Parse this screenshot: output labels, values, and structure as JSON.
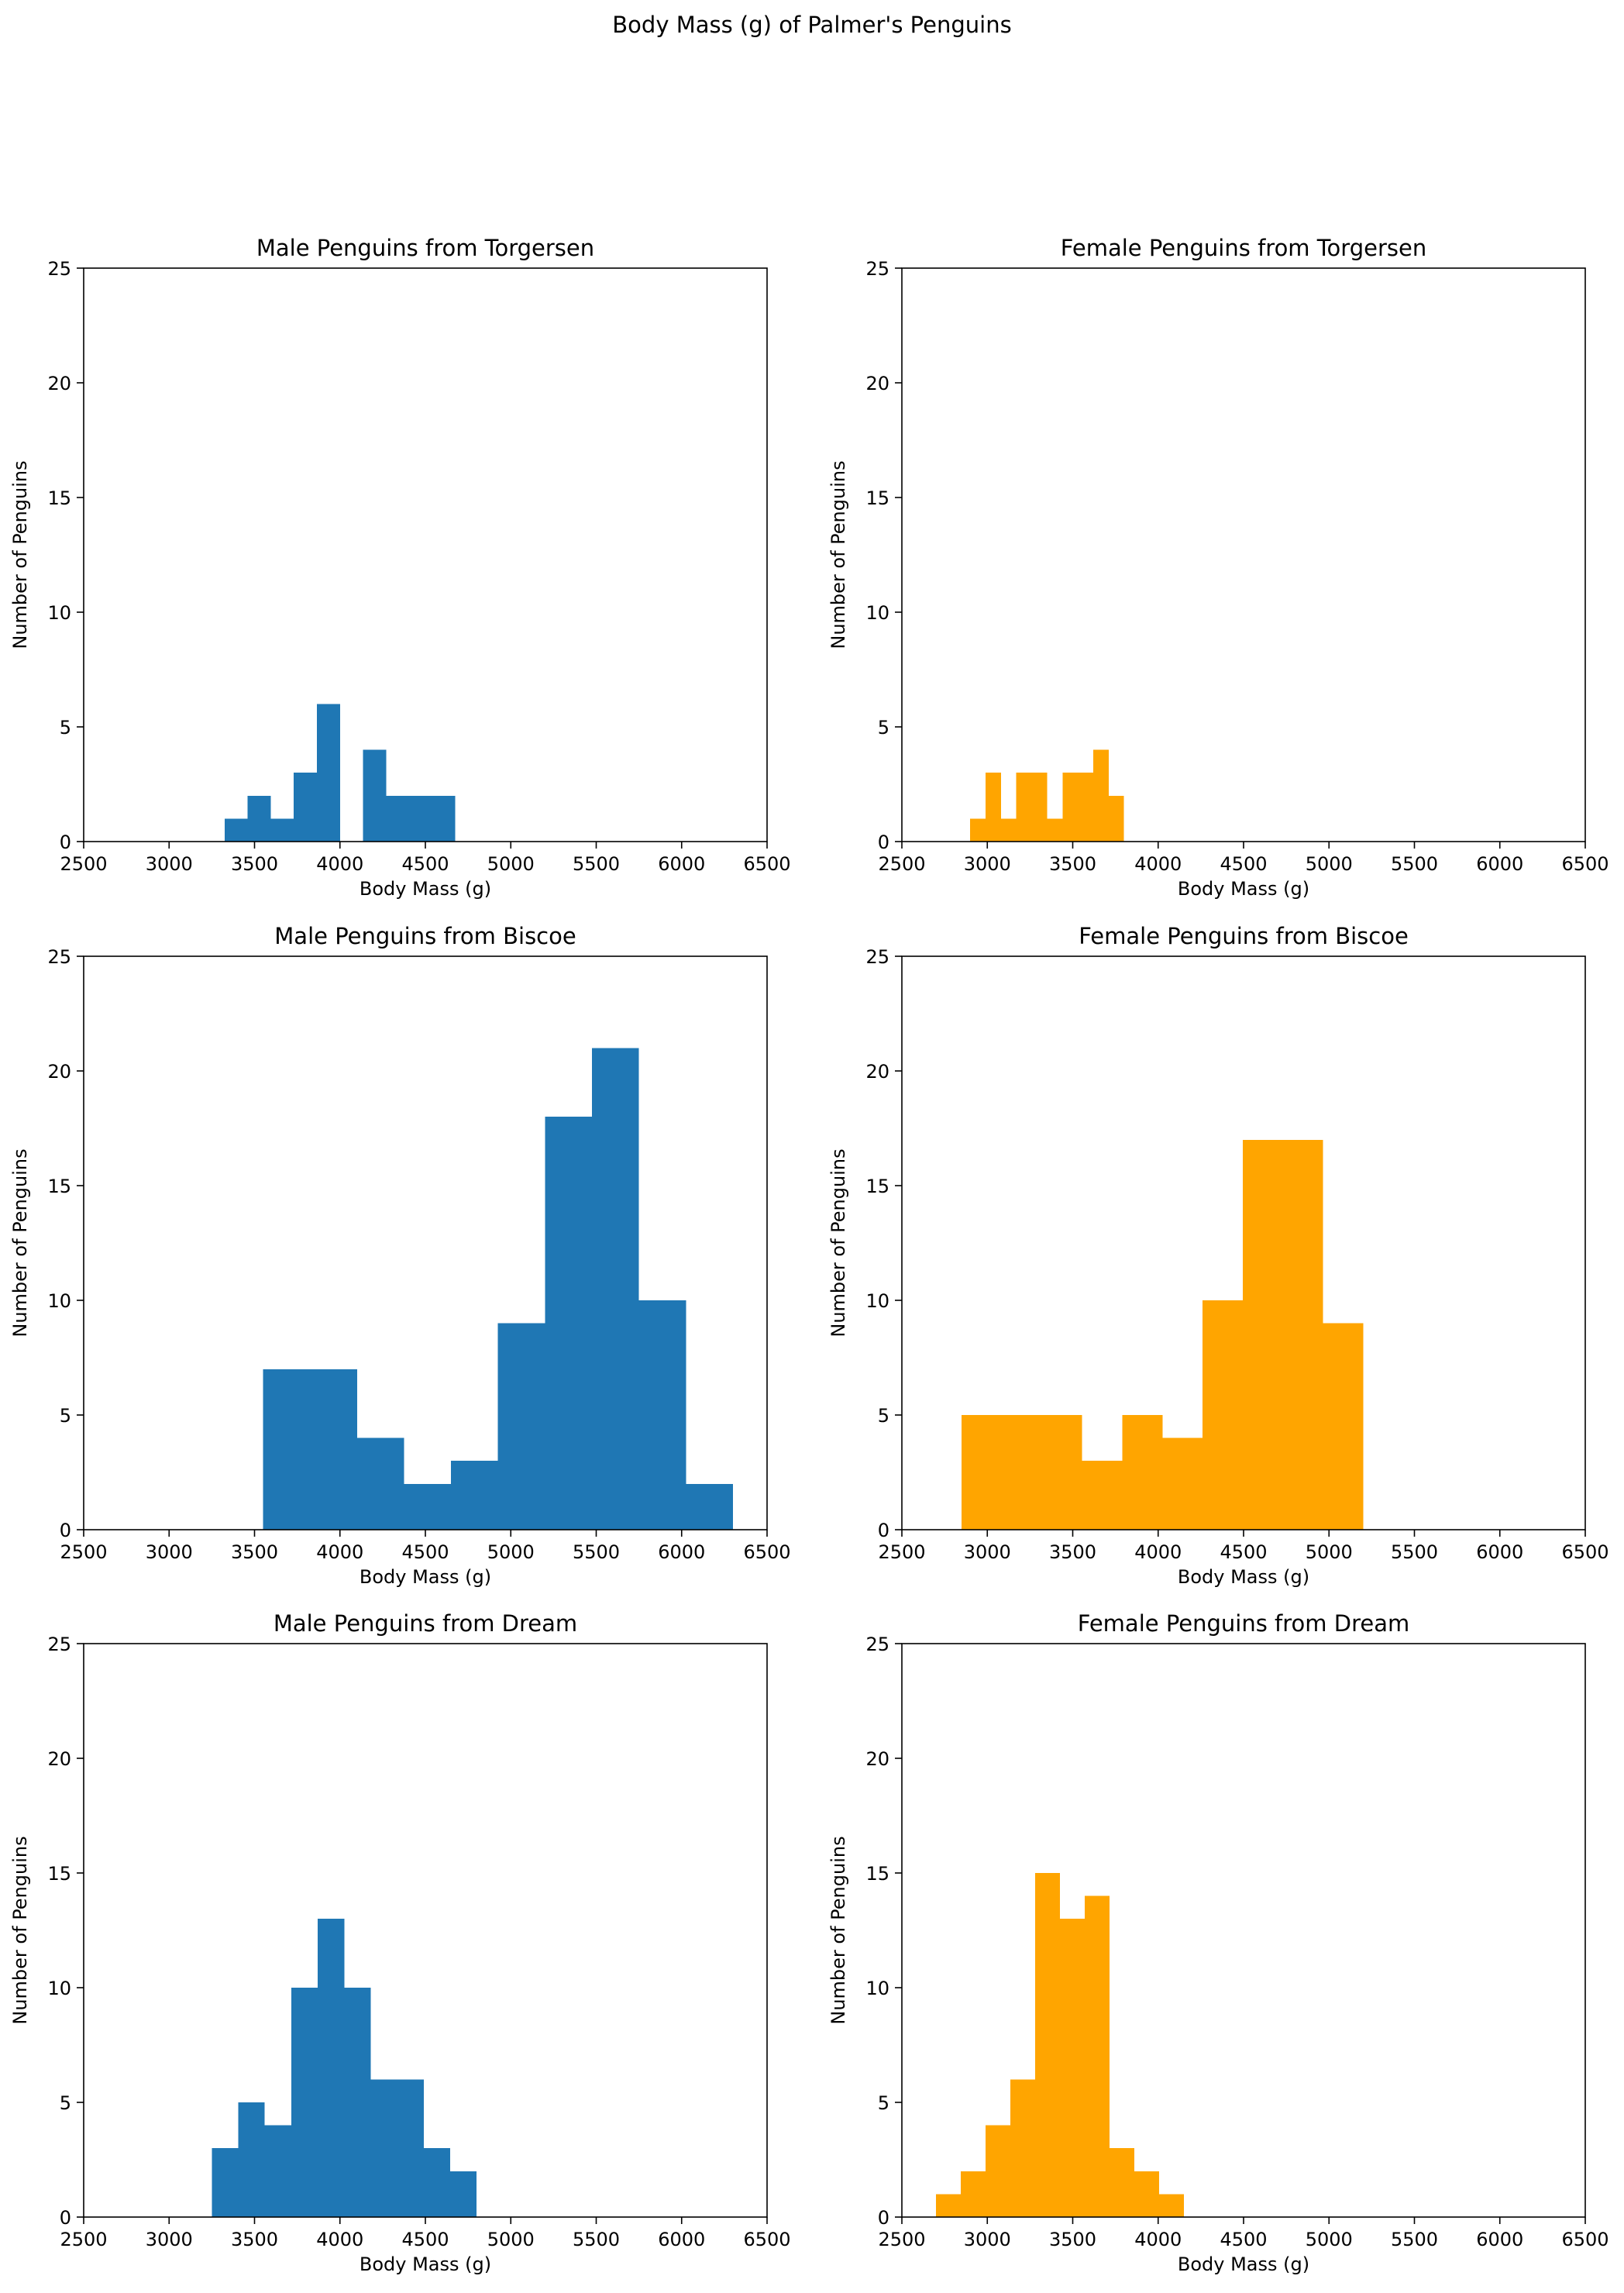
{
  "figure": {
    "title": "Body Mass (g) of Palmer's Penguins"
  },
  "colors": {
    "male": "#1f77b4",
    "female": "#ffa500"
  },
  "chart_data": [
    {
      "type": "bar",
      "title": "Male Penguins from Torgersen",
      "xlabel": "Body Mass (g)",
      "ylabel": "Number of Penguins",
      "xlim": [
        2500,
        6500
      ],
      "ylim": [
        0,
        25
      ],
      "xticks": [
        2500,
        3000,
        3500,
        4000,
        4500,
        5000,
        5500,
        6000,
        6500
      ],
      "yticks": [
        0,
        5,
        10,
        15,
        20,
        25
      ],
      "color": "male",
      "bins": [
        3325,
        3460,
        3595,
        3730,
        3865,
        4000,
        4135,
        4270,
        4405,
        4540,
        4675
      ],
      "counts": [
        1,
        2,
        1,
        3,
        6,
        0,
        4,
        2,
        2,
        2
      ]
    },
    {
      "type": "bar",
      "title": "Female Penguins from Torgersen",
      "xlabel": "Body Mass (g)",
      "ylabel": "Number of Penguins",
      "xlim": [
        2500,
        6500
      ],
      "ylim": [
        0,
        25
      ],
      "xticks": [
        2500,
        3000,
        3500,
        4000,
        4500,
        5000,
        5500,
        6000,
        6500
      ],
      "yticks": [
        0,
        5,
        10,
        15,
        20,
        25
      ],
      "color": "female",
      "bins": [
        2900,
        2990,
        3080,
        3170,
        3260,
        3350,
        3440,
        3530,
        3620,
        3710,
        3800
      ],
      "counts": [
        1,
        3,
        1,
        3,
        3,
        1,
        3,
        3,
        4,
        2
      ]
    },
    {
      "type": "bar",
      "title": "Male Penguins from Biscoe",
      "xlabel": "Body Mass (g)",
      "ylabel": "Number of Penguins",
      "xlim": [
        2500,
        6500
      ],
      "ylim": [
        0,
        25
      ],
      "xticks": [
        2500,
        3000,
        3500,
        4000,
        4500,
        5000,
        5500,
        6000,
        6500
      ],
      "yticks": [
        0,
        5,
        10,
        15,
        20,
        25
      ],
      "color": "male",
      "bins": [
        3550,
        3825,
        4100,
        4375,
        4650,
        4925,
        5200,
        5475,
        5750,
        6025,
        6300
      ],
      "counts": [
        7,
        7,
        4,
        2,
        3,
        9,
        18,
        21,
        10,
        2
      ]
    },
    {
      "type": "bar",
      "title": "Female Penguins from Biscoe",
      "xlabel": "Body Mass (g)",
      "ylabel": "Number of Penguins",
      "xlim": [
        2500,
        6500
      ],
      "ylim": [
        0,
        25
      ],
      "xticks": [
        2500,
        3000,
        3500,
        4000,
        4500,
        5000,
        5500,
        6000,
        6500
      ],
      "yticks": [
        0,
        5,
        10,
        15,
        20,
        25
      ],
      "color": "female",
      "bins": [
        2850,
        3085,
        3320,
        3555,
        3790,
        4025,
        4260,
        4495,
        4730,
        4965,
        5200
      ],
      "counts": [
        5,
        5,
        5,
        3,
        5,
        4,
        10,
        17,
        17,
        9
      ]
    },
    {
      "type": "bar",
      "title": "Male Penguins from Dream",
      "xlabel": "Body Mass (g)",
      "ylabel": "Number of Penguins",
      "xlim": [
        2500,
        6500
      ],
      "ylim": [
        0,
        25
      ],
      "xticks": [
        2500,
        3000,
        3500,
        4000,
        4500,
        5000,
        5500,
        6000,
        6500
      ],
      "yticks": [
        0,
        5,
        10,
        15,
        20,
        25
      ],
      "color": "male",
      "bins": [
        3250,
        3405,
        3560,
        3715,
        3870,
        4025,
        4180,
        4335,
        4490,
        4645,
        4800
      ],
      "counts": [
        3,
        5,
        4,
        10,
        13,
        10,
        6,
        6,
        3,
        2
      ]
    },
    {
      "type": "bar",
      "title": "Female Penguins from Dream",
      "xlabel": "Body Mass (g)",
      "ylabel": "Number of Penguins",
      "xlim": [
        2500,
        6500
      ],
      "ylim": [
        0,
        25
      ],
      "xticks": [
        2500,
        3000,
        3500,
        4000,
        4500,
        5000,
        5500,
        6000,
        6500
      ],
      "yticks": [
        0,
        5,
        10,
        15,
        20,
        25
      ],
      "color": "female",
      "bins": [
        2700,
        2845,
        2990,
        3135,
        3280,
        3425,
        3570,
        3715,
        3860,
        4005,
        4150
      ],
      "counts": [
        1,
        2,
        4,
        6,
        15,
        13,
        14,
        3,
        2,
        1
      ]
    }
  ]
}
